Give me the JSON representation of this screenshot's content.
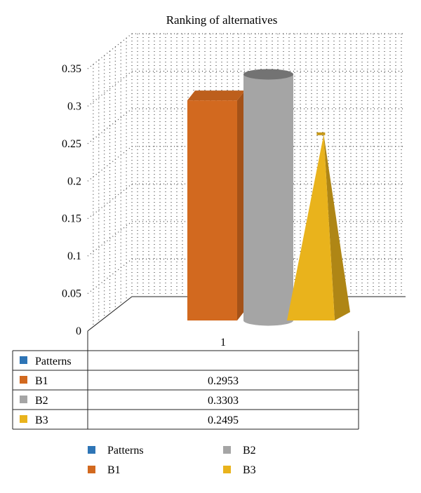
{
  "chart_data": {
    "type": "bar",
    "title": "Ranking of alternatives",
    "categories": [
      "1"
    ],
    "ylim": [
      0,
      0.35
    ],
    "yticks": [
      "0",
      "0.05",
      "0.1",
      "0.15",
      "0.2",
      "0.25",
      "0.3",
      "0.35"
    ],
    "grid": true,
    "series": [
      {
        "name": "Patterns",
        "values": [
          null
        ],
        "color": "#2e75b6",
        "shape": "none"
      },
      {
        "name": "B1",
        "values": [
          0.2953
        ],
        "color": "#d2691f",
        "shape": "box"
      },
      {
        "name": "B2",
        "values": [
          0.3303
        ],
        "color": "#a5a5a5",
        "shape": "cylinder"
      },
      {
        "name": "B3",
        "values": [
          0.2495
        ],
        "color": "#e9b31c",
        "shape": "pyramid"
      }
    ],
    "data_table": {
      "header": "1",
      "rows": [
        {
          "label": "Patterns",
          "value": ""
        },
        {
          "label": "B1",
          "value": "0.2953"
        },
        {
          "label": "B2",
          "value": "0.3303"
        },
        {
          "label": "B3",
          "value": "0.2495"
        }
      ]
    },
    "legend": "bottom"
  }
}
